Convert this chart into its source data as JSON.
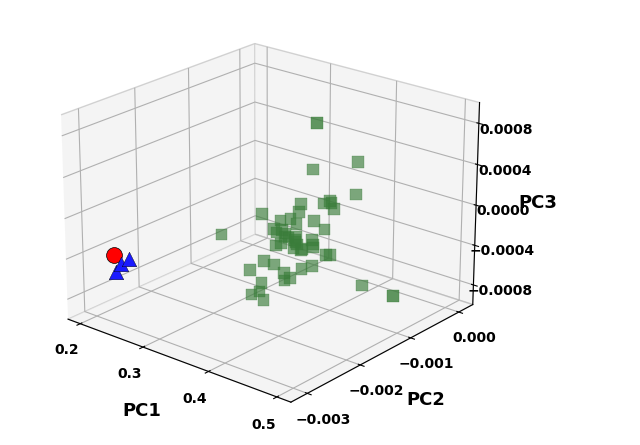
{
  "pc1_label": "PC1",
  "pc2_label": "PC2",
  "pc3_label": "PC3",
  "pc1_lim": [
    0.18,
    0.52
  ],
  "pc2_lim": [
    -0.0033,
    0.0003
  ],
  "pc3_lim": [
    -0.001,
    0.001
  ],
  "pc1_ticks": [
    0.2,
    0.3,
    0.4,
    0.5
  ],
  "pc2_ticks": [
    -0.003,
    -0.002,
    -0.001,
    0.0
  ],
  "pc3_ticks": [
    -0.0008,
    -0.0004,
    0.0,
    0.0004,
    0.0008
  ],
  "green_squares_pc1": [
    0.355,
    0.365,
    0.375,
    0.38,
    0.385,
    0.39,
    0.395,
    0.4,
    0.405,
    0.41,
    0.415,
    0.42,
    0.425,
    0.43,
    0.435,
    0.44,
    0.445,
    0.45,
    0.36,
    0.37,
    0.39,
    0.395,
    0.4,
    0.405,
    0.42,
    0.435,
    0.44,
    0.345,
    0.38,
    0.385,
    0.41,
    0.455,
    0.47,
    0.385,
    0.37,
    0.42,
    0.375,
    0.39,
    0.395,
    0.41,
    0.385,
    0.355,
    0.415,
    0.43,
    0.48,
    0.39,
    0.375,
    0.405,
    0.33
  ],
  "green_squares_pc2": [
    -0.00175,
    -0.00165,
    -0.00155,
    -0.0017,
    -0.00185,
    -0.00175,
    -0.0016,
    -0.00155,
    -0.00175,
    -0.0018,
    -0.00185,
    -0.0016,
    -0.00165,
    -0.00175,
    -0.0018,
    -0.00165,
    -0.0016,
    -0.00175,
    -0.00155,
    -0.0019,
    -0.00145,
    -0.00155,
    -0.0019,
    -0.00195,
    -0.0014,
    -0.00145,
    -0.00155,
    -0.00185,
    -0.0013,
    -0.00175,
    -0.00185,
    -0.0011,
    -0.00145,
    -0.0019,
    -0.00195,
    -0.0012,
    -0.00205,
    -0.00165,
    -0.00175,
    -0.0017,
    -0.0021,
    -0.00195,
    -0.00155,
    -0.00175,
    -0.00155,
    -0.00155,
    -0.00165,
    -0.00185,
    -0.0022
  ],
  "green_squares_pc3": [
    5e-05,
    -0.0001,
    -0.00015,
    -0.0002,
    -5e-05,
    -0.0001,
    0.0,
    -0.00025,
    -0.0001,
    -5e-05,
    -0.0001,
    -0.00015,
    0.0001,
    -5e-05,
    -0.0001,
    5e-05,
    -0.0002,
    -0.00015,
    -0.0003,
    -0.00035,
    0.00015,
    0.0001,
    -0.0004,
    -0.00045,
    0.0002,
    0.00025,
    0.0003,
    -0.0005,
    -0.00055,
    -5e-05,
    -0.00015,
    -0.0006,
    0.0004,
    -0.00035,
    -0.00055,
    0.0001,
    -0.0006,
    5e-05,
    -0.0001,
    -0.0002,
    -0.00065,
    -0.0007,
    0.00055,
    -0.0003,
    0.00075,
    -0.0002,
    0.0,
    -0.00045,
    -0.0001
  ],
  "outlier_pc1": [
    0.475
  ],
  "outlier_pc2": [
    -0.00075
  ],
  "outlier_pc3": [
    -0.00075
  ],
  "isolated_top_pc1": [
    0.375
  ],
  "isolated_top_pc2": [
    -0.00095
  ],
  "isolated_top_pc3": [
    0.0008
  ],
  "red_circle_pc1": [
    0.225
  ],
  "red_circle_pc2": [
    -0.00295
  ],
  "red_circle_pc3": [
    -0.00035
  ],
  "blue_triangle_pc1": [
    0.245,
    0.235,
    0.23
  ],
  "blue_triangle_pc2": [
    -0.0029,
    -0.00293,
    -0.00296
  ],
  "blue_triangle_pc3": [
    -0.00035,
    -0.00042,
    -0.0005
  ],
  "green_color": "#3a7d3a",
  "red_color": "#ff0000",
  "blue_color": "#1a1aff",
  "marker_size_squares": 70,
  "marker_size_circle": 130,
  "marker_size_triangle": 110,
  "elev": 22,
  "azim": -50,
  "figsize": [
    6.4,
    4.45
  ],
  "dpi": 100,
  "tick_fontsize": 10,
  "label_fontsize": 13,
  "pane_color": "#ebebeb",
  "pane_edge_color": "#aaaaaa"
}
